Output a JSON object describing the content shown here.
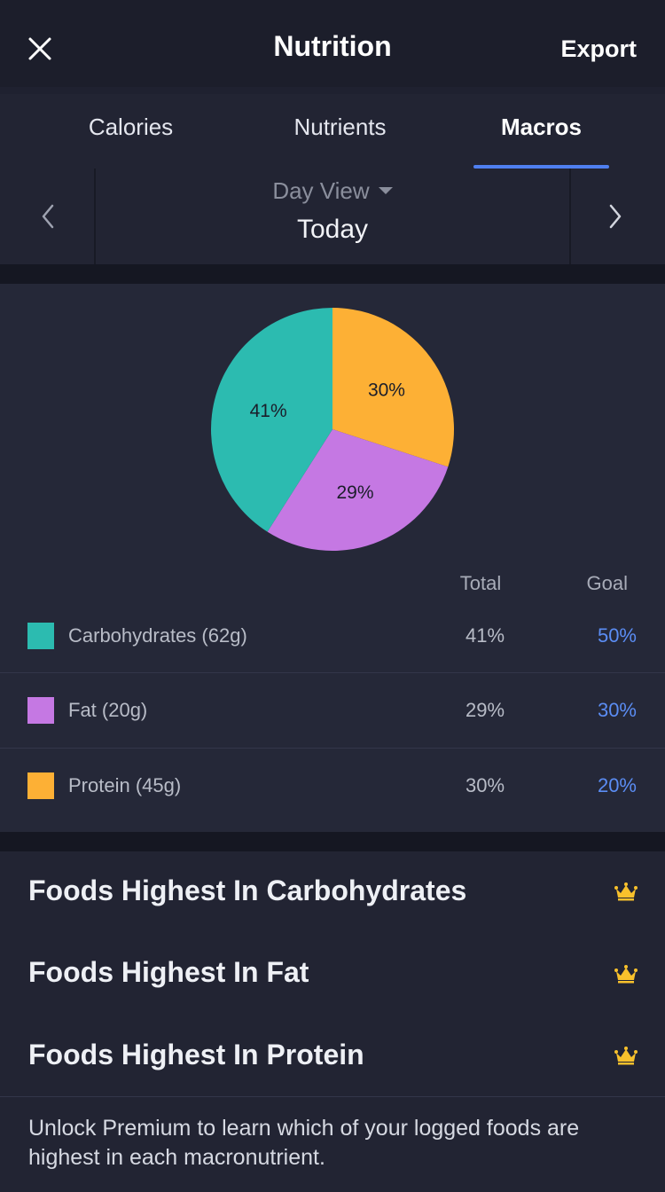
{
  "header": {
    "title": "Nutrition",
    "export_label": "Export"
  },
  "tabs": [
    {
      "label": "Calories",
      "active": false
    },
    {
      "label": "Nutrients",
      "active": false
    },
    {
      "label": "Macros",
      "active": true
    }
  ],
  "date_nav": {
    "view_label": "Day View",
    "date_label": "Today"
  },
  "chart_data": {
    "type": "pie",
    "slices": [
      {
        "label": "Protein",
        "value": 30,
        "color": "#fdb035"
      },
      {
        "label": "Fat",
        "value": 29,
        "color": "#c578e3"
      },
      {
        "label": "Carbohydrates",
        "value": 41,
        "color": "#2cbbb0"
      }
    ],
    "data_labels": [
      "30%",
      "29%",
      "41%"
    ]
  },
  "table": {
    "col_total": "Total",
    "col_goal": "Goal",
    "rows": [
      {
        "label": "Carbohydrates (62g)",
        "total": "41%",
        "goal": "50%",
        "color": "#2cbbb0"
      },
      {
        "label": "Fat (20g)",
        "total": "29%",
        "goal": "30%",
        "color": "#c578e3"
      },
      {
        "label": "Protein (45g)",
        "total": "30%",
        "goal": "20%",
        "color": "#fdb035"
      }
    ]
  },
  "foods": [
    "Foods Highest In Carbohydrates",
    "Foods Highest In Fat",
    "Foods Highest In Protein"
  ],
  "premium_text": "Unlock Premium to learn which of your logged foods are highest in each macronutrient.",
  "icons": {
    "close": "close-icon",
    "crown": "crown-icon",
    "prev": "chevron-left-icon",
    "next": "chevron-right-icon",
    "caret": "caret-down-icon"
  },
  "colors": {
    "accent": "#4f7ff0",
    "goal": "#5b8df4",
    "crown": "#f8c12c"
  }
}
